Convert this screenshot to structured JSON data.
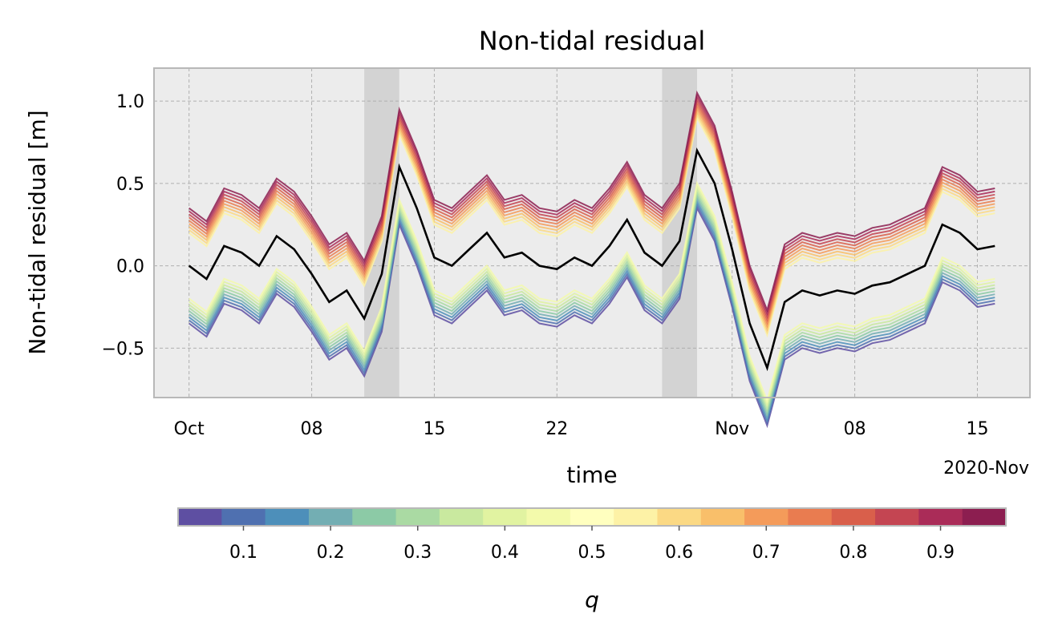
{
  "chart_data": {
    "type": "line",
    "title": "Non-tidal residual",
    "xlabel": "time",
    "ylabel": "Non-tidal residual [m]",
    "x_axis_note": "2020-Nov",
    "x_range": [
      "2020-09-29",
      "2020-11-18"
    ],
    "ylim": [
      -0.8,
      1.2
    ],
    "grid": true,
    "x_ticks": [
      {
        "date": "2020-10-01",
        "label": "Oct"
      },
      {
        "date": "2020-10-08",
        "label": "08"
      },
      {
        "date": "2020-10-15",
        "label": "15"
      },
      {
        "date": "2020-10-22",
        "label": "22"
      },
      {
        "date": "2020-11-01",
        "label": "Nov"
      },
      {
        "date": "2020-11-08",
        "label": "08"
      },
      {
        "date": "2020-11-15",
        "label": "15"
      }
    ],
    "y_ticks": [
      {
        "value": 1.0,
        "label": "1.0"
      },
      {
        "value": 0.5,
        "label": "0.5"
      },
      {
        "value": 0.0,
        "label": "0.0"
      },
      {
        "value": -0.5,
        "label": "−0.5"
      }
    ],
    "shaded_periods": [
      {
        "start": "2020-10-11",
        "end": "2020-10-13"
      },
      {
        "start": "2020-10-28",
        "end": "2020-10-30"
      }
    ],
    "x": [
      "2020-10-01",
      "2020-10-02",
      "2020-10-03",
      "2020-10-04",
      "2020-10-05",
      "2020-10-06",
      "2020-10-07",
      "2020-10-08",
      "2020-10-09",
      "2020-10-10",
      "2020-10-11",
      "2020-10-12",
      "2020-10-13",
      "2020-10-14",
      "2020-10-15",
      "2020-10-16",
      "2020-10-17",
      "2020-10-18",
      "2020-10-19",
      "2020-10-20",
      "2020-10-21",
      "2020-10-22",
      "2020-10-23",
      "2020-10-24",
      "2020-10-25",
      "2020-10-26",
      "2020-10-27",
      "2020-10-28",
      "2020-10-29",
      "2020-10-30",
      "2020-10-31",
      "2020-11-01",
      "2020-11-02",
      "2020-11-03",
      "2020-11-04",
      "2020-11-05",
      "2020-11-06",
      "2020-11-07",
      "2020-11-08",
      "2020-11-09",
      "2020-11-10",
      "2020-11-11",
      "2020-11-12",
      "2020-11-13",
      "2020-11-14",
      "2020-11-15",
      "2020-11-16"
    ],
    "quantile_offsets": {
      "low": [
        -0.35,
        -0.18
      ],
      "high": [
        0.18,
        0.35
      ]
    },
    "series": [
      {
        "values": [
          0.0,
          -0.08,
          0.12,
          0.08,
          0.0,
          0.18,
          0.1,
          -0.05,
          -0.22,
          -0.15,
          -0.32,
          -0.05,
          0.6,
          0.35,
          0.05,
          0.0,
          0.1,
          0.2,
          0.05,
          0.08,
          0.0,
          -0.02,
          0.05,
          0.0,
          0.12,
          0.28,
          0.08,
          0.0,
          0.15,
          0.7,
          0.5,
          0.1,
          -0.35,
          -0.62,
          -0.22,
          -0.15,
          -0.18,
          -0.15,
          -0.17,
          -0.12,
          -0.1,
          -0.05,
          0.0,
          0.25,
          0.2,
          0.1,
          0.12
        ]
      }
    ],
    "colorbar": {
      "label": "q",
      "ticks": [
        "0.1",
        "0.2",
        "0.3",
        "0.4",
        "0.5",
        "0.6",
        "0.7",
        "0.8",
        "0.9"
      ],
      "range": [
        0.025,
        0.975
      ],
      "colors": [
        "#5e4fa2",
        "#4f70b0",
        "#4d8fba",
        "#73aeb3",
        "#8ccaa6",
        "#aadaa3",
        "#c9e99f",
        "#e1f3a1",
        "#f3faab",
        "#ffffbf",
        "#fdf2a6",
        "#fbd984",
        "#f9bf6a",
        "#f49b5a",
        "#e97c50",
        "#d95f4b",
        "#c44552",
        "#aa2c58",
        "#8c1e50"
      ]
    }
  }
}
